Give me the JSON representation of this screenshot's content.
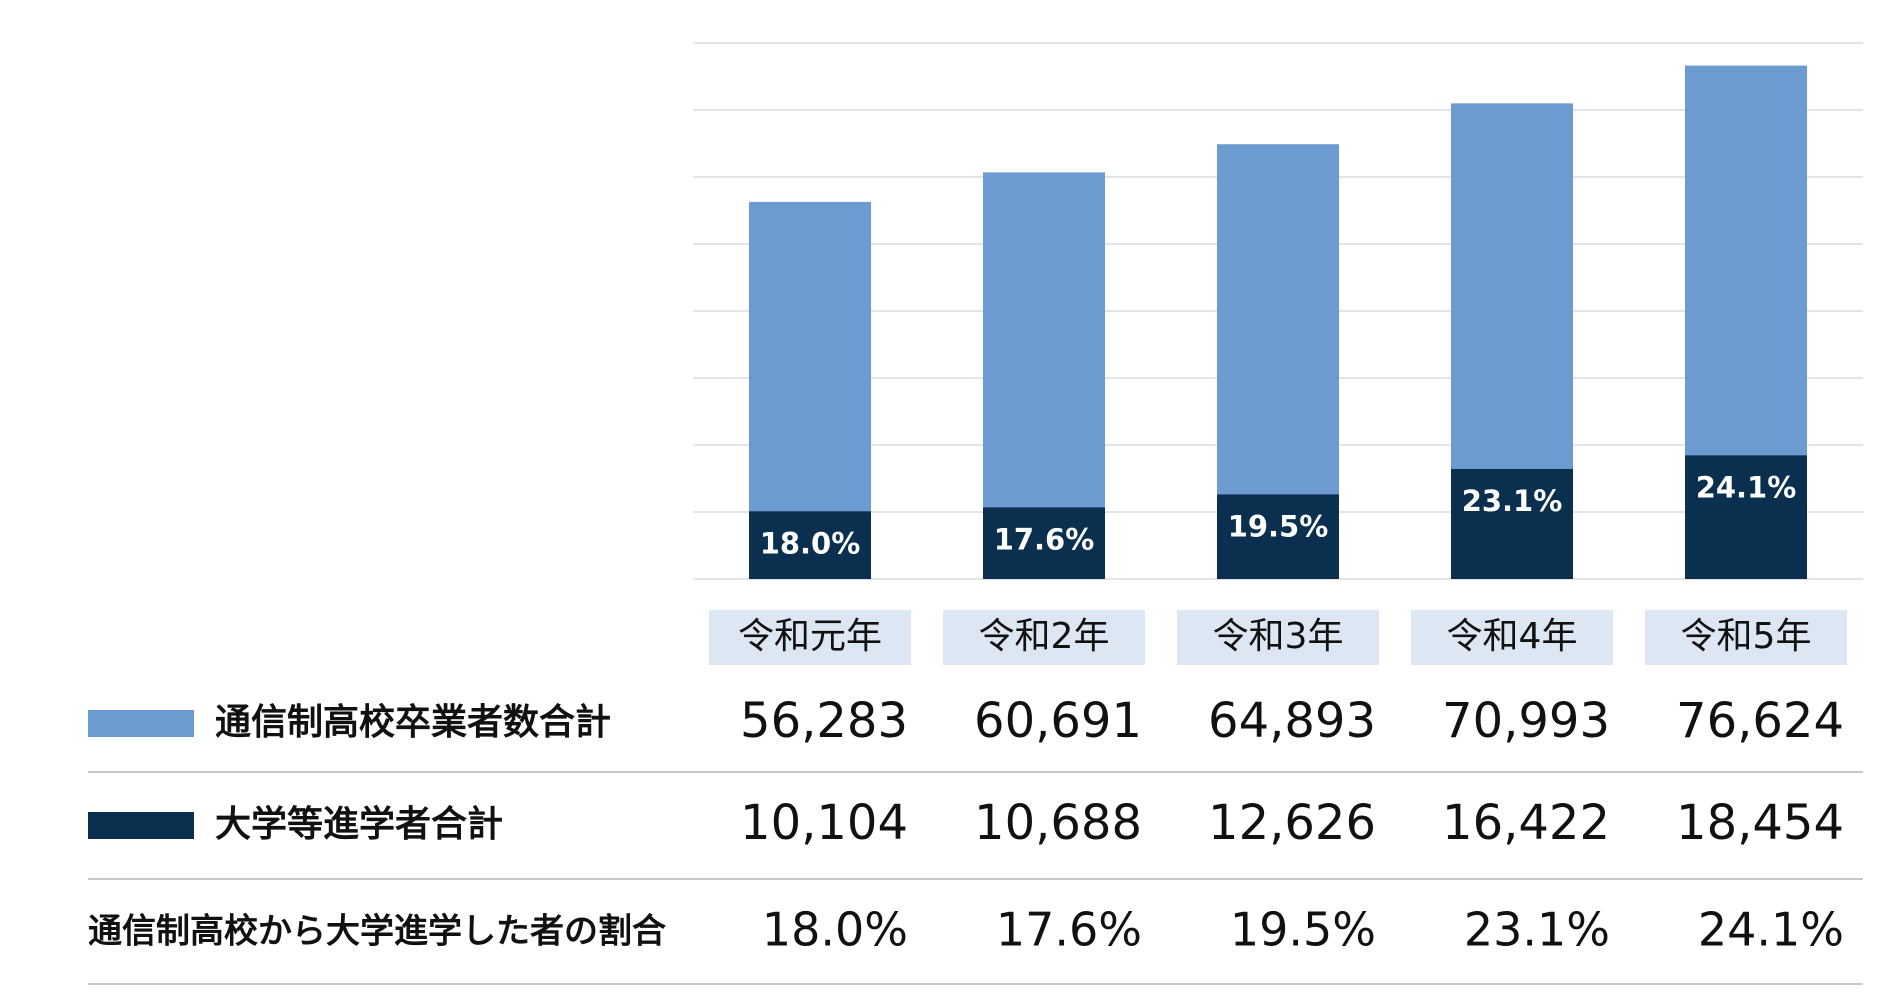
{
  "chart_data": {
    "type": "bar",
    "categories": [
      "令和元年",
      "令和2年",
      "令和3年",
      "令和4年",
      "令和5年"
    ],
    "series": [
      {
        "name": "通信制高校卒業者数合計",
        "color": "#6b9bd0",
        "values": [
          56283,
          60691,
          64893,
          70993,
          76624
        ],
        "value_labels": [
          "56,283",
          "60,691",
          "64,893",
          "70,993",
          "76,624"
        ]
      },
      {
        "name": "大学等進学者合計",
        "color": "#0b2f4f",
        "values": [
          10104,
          10688,
          12626,
          16422,
          18454
        ],
        "value_labels": [
          "10,104",
          "10,688",
          "12,626",
          "16,422",
          "18,454"
        ]
      }
    ],
    "ratio": {
      "name": "通信制高校から大学進学した者の割合",
      "values": [
        18.0,
        17.6,
        19.5,
        23.1,
        24.1
      ],
      "value_labels": [
        "18.0%",
        "17.6%",
        "19.5%",
        "23.1%",
        "24.1%"
      ]
    },
    "ylim": [
      0,
      80000
    ],
    "yticks": [
      0,
      10000,
      20000,
      30000,
      40000,
      50000,
      60000,
      70000,
      80000
    ],
    "grid": true
  }
}
